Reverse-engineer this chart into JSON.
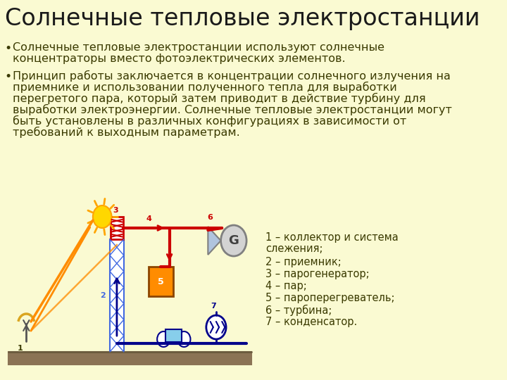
{
  "bg_color": "#FAFAD2",
  "title": "Солнечные тепловые электростанции",
  "title_fontsize": 24,
  "title_color": "#1a1a1a",
  "bullet1_line1": "Солнечные тепловые электростанции используют солнечные",
  "bullet1_line2": "концентраторы вместо фотоэлектрических элементов.",
  "bullet2_line1": "Принцип работы заключается в концентрации солнечного излучения на",
  "bullet2_line2": "приемнике и использовании полученного тепла для выработки",
  "bullet2_line3": "перегретого пара, который затем приводит в действие турбину для",
  "bullet2_line4": "выработки электроэнергии. Солнечные тепловые электростанции могут",
  "bullet2_line5": "быть установлены в различных конфигурациях в зависимости от",
  "bullet2_line6": "требований к выходным параметрам.",
  "legend_lines": [
    "1 – коллектор и система",
    "слежения;",
    "2 – приемник;",
    "3 – парогенератор;",
    "4 – пар;",
    "5 – пароперегреватель;",
    "6 – турбина;",
    "7 – конденсатор."
  ],
  "text_color": "#3a3a00",
  "sun_color": "#FFD700",
  "sun_ray_color": "#FFA500",
  "sun_beam_color": "#FF8C00",
  "tower_color": "#4169E1",
  "pipe_red": "#CC0000",
  "pipe_blue": "#00008B",
  "ground_color": "#8B7355",
  "heater_color": "#FF8C00",
  "gen_fill": "#D3D3D3",
  "gen_edge": "#808080"
}
